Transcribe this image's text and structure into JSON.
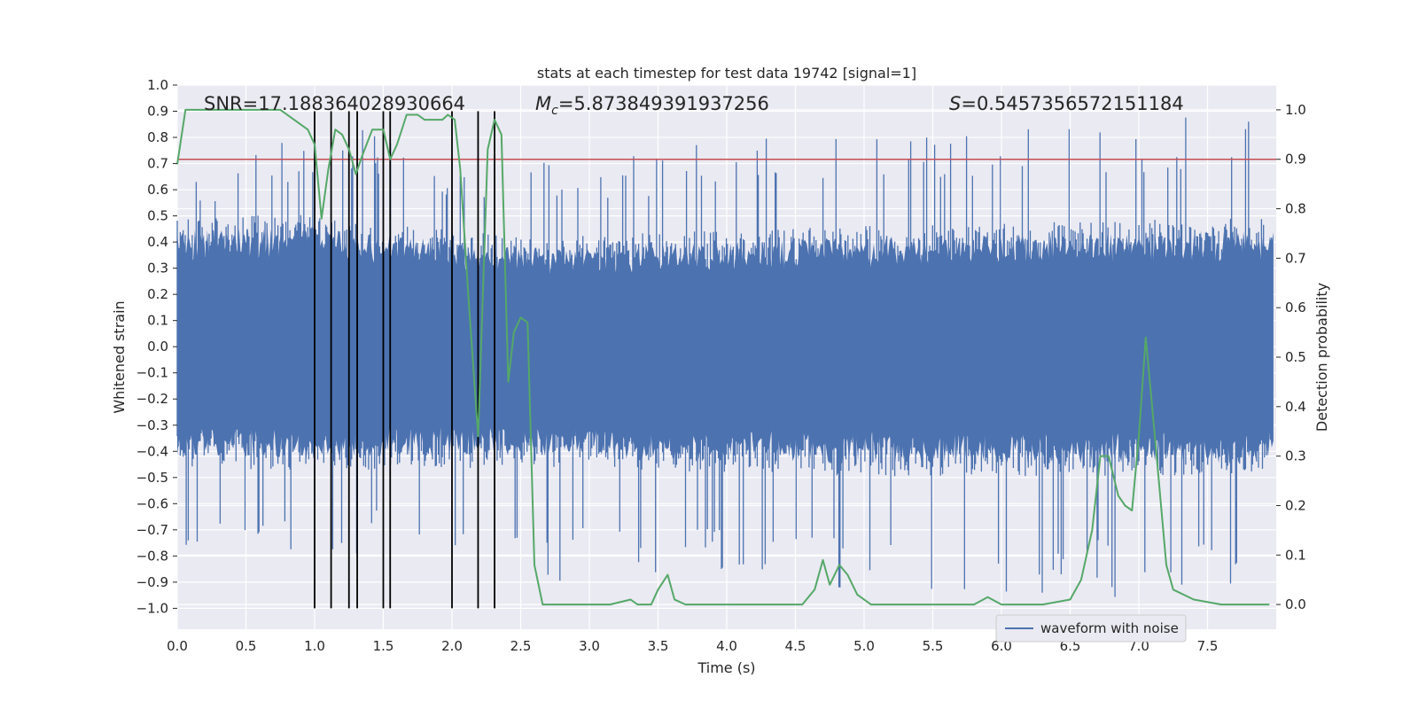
{
  "chart_data": {
    "type": "line",
    "title": "stats at each timestep for test data 19742 [signal=1]",
    "xlabel": "Time (s)",
    "ylabel_left": "Whitened strain",
    "ylabel_right": "Detection probability",
    "xlim": [
      0.0,
      8.0
    ],
    "ylim_left": [
      -1.08,
      1.0
    ],
    "ylim_right": [
      -0.05,
      1.05
    ],
    "x_ticks": [
      "0.0",
      "0.5",
      "1.0",
      "1.5",
      "2.0",
      "2.5",
      "3.0",
      "3.5",
      "4.0",
      "4.5",
      "5.0",
      "5.5",
      "6.0",
      "6.5",
      "7.0",
      "7.5"
    ],
    "y_ticks_left": [
      "1.0",
      "0.9",
      "0.8",
      "0.7",
      "0.6",
      "0.5",
      "0.4",
      "0.3",
      "0.2",
      "0.1",
      "0.0",
      "−0.1",
      "−0.2",
      "−0.3",
      "−0.4",
      "−0.5",
      "−0.6",
      "−0.7",
      "−0.8",
      "−0.9",
      "−1.0"
    ],
    "y_ticks_right": [
      "0.0",
      "0.1",
      "0.2",
      "0.3",
      "0.4",
      "0.5",
      "0.6",
      "0.7",
      "0.8",
      "0.9",
      "1.0"
    ],
    "grid": true,
    "annotations": {
      "snr": "SNR=17.188364028930664",
      "mc_prefix": "M",
      "mc_sub": "c",
      "mc_value": "=5.873849391937256",
      "s_prefix": "S",
      "s_value": "=0.5457356572151184"
    },
    "threshold": {
      "value": 0.9,
      "axis": "right",
      "color": "#c44e52"
    },
    "vertical_markers": {
      "x": [
        1.0,
        1.12,
        1.25,
        1.31,
        1.5,
        1.55,
        2.0,
        2.19,
        2.31
      ],
      "y_range": [
        -1.0,
        0.9
      ],
      "color": "#000000"
    },
    "series": [
      {
        "name": "waveform with noise",
        "axis": "left",
        "color": "#4c72b0",
        "envelope": [
          {
            "t": 0.0,
            "hi": 0.45,
            "lo": -0.42,
            "peak_hi": 0.65,
            "peak_lo": -0.78
          },
          {
            "t": 1.0,
            "hi": 0.46,
            "lo": -0.43,
            "peak_hi": 0.88,
            "peak_lo": -0.8
          },
          {
            "t": 2.5,
            "hi": 0.38,
            "lo": -0.42,
            "peak_hi": 0.7,
            "peak_lo": -0.9
          },
          {
            "t": 5.0,
            "hi": 0.42,
            "lo": -0.45,
            "peak_hi": 0.85,
            "peak_lo": -0.95
          },
          {
            "t": 8.0,
            "hi": 0.45,
            "lo": -0.45,
            "peak_hi": 0.9,
            "peak_lo": -0.98
          }
        ]
      },
      {
        "axis": "right",
        "color": "#55a868",
        "x": [
          0.0,
          0.06,
          0.2,
          0.4,
          0.6,
          0.75,
          0.85,
          0.95,
          1.0,
          1.05,
          1.1,
          1.15,
          1.2,
          1.25,
          1.3,
          1.35,
          1.42,
          1.5,
          1.55,
          1.6,
          1.67,
          1.75,
          1.8,
          1.86,
          1.93,
          1.97,
          2.02,
          2.06,
          2.12,
          2.19,
          2.26,
          2.31,
          2.36,
          2.41,
          2.45,
          2.5,
          2.55,
          2.6,
          2.66,
          2.72,
          2.8,
          2.9,
          3.0,
          3.15,
          3.3,
          3.35,
          3.45,
          3.5,
          3.57,
          3.62,
          3.7,
          3.8,
          4.0,
          4.3,
          4.45,
          4.55,
          4.64,
          4.7,
          4.75,
          4.82,
          4.88,
          4.95,
          5.05,
          5.3,
          5.6,
          5.8,
          5.9,
          6.0,
          6.3,
          6.5,
          6.58,
          6.66,
          6.72,
          6.78,
          6.85,
          6.9,
          6.95,
          7.0,
          7.05,
          7.12,
          7.2,
          7.25,
          7.4,
          7.6,
          7.8,
          7.95
        ],
        "y": [
          0.89,
          1.0,
          1.0,
          1.0,
          1.0,
          1.0,
          0.98,
          0.96,
          0.93,
          0.78,
          0.88,
          0.96,
          0.95,
          0.92,
          0.87,
          0.91,
          0.96,
          0.96,
          0.9,
          0.93,
          0.99,
          0.99,
          0.98,
          0.98,
          0.98,
          0.99,
          0.98,
          0.88,
          0.62,
          0.34,
          0.92,
          0.98,
          0.95,
          0.45,
          0.55,
          0.58,
          0.57,
          0.08,
          0.0,
          0.0,
          0.0,
          0.0,
          0.0,
          0.0,
          0.01,
          0.0,
          0.0,
          0.03,
          0.06,
          0.01,
          0.0,
          0.0,
          0.0,
          0.0,
          0.0,
          0.0,
          0.03,
          0.09,
          0.04,
          0.08,
          0.06,
          0.02,
          0.0,
          0.0,
          0.0,
          0.0,
          0.015,
          0.0,
          0.0,
          0.01,
          0.05,
          0.15,
          0.3,
          0.3,
          0.22,
          0.2,
          0.19,
          0.34,
          0.54,
          0.33,
          0.08,
          0.03,
          0.01,
          0.0,
          0.0,
          0.0
        ]
      }
    ],
    "legend": {
      "position": "lower-right",
      "label": "waveform with noise"
    }
  }
}
